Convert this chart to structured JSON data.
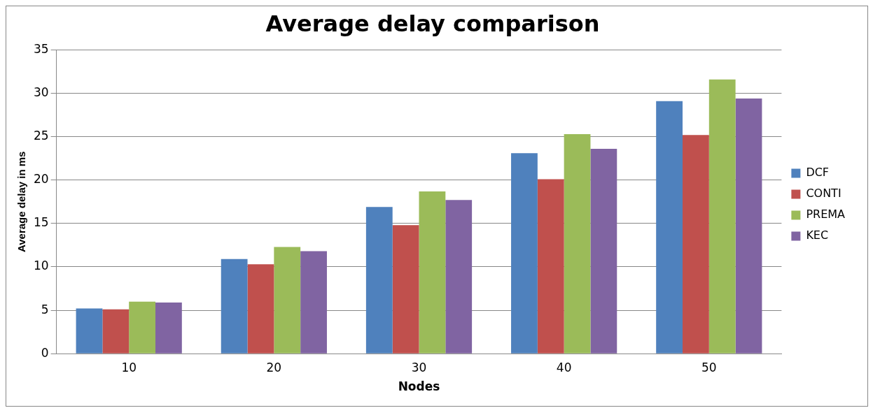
{
  "chart_data": {
    "type": "bar",
    "title": "Average delay comparison",
    "xlabel": "Nodes",
    "ylabel": "Average delay in ms",
    "categories": [
      "10",
      "20",
      "30",
      "40",
      "50"
    ],
    "series": [
      {
        "name": "DCF",
        "color": "#4f81bd",
        "values": [
          5.2,
          10.9,
          16.9,
          23.1,
          29.1
        ]
      },
      {
        "name": "CONTI",
        "color": "#c0504d",
        "values": [
          5.1,
          10.3,
          14.8,
          20.1,
          25.2
        ]
      },
      {
        "name": "PREMA",
        "color": "#9bbb59",
        "values": [
          6.0,
          12.3,
          18.7,
          25.3,
          31.6
        ]
      },
      {
        "name": "KEC",
        "color": "#8064a2",
        "values": [
          5.9,
          11.8,
          17.7,
          23.6,
          29.4
        ]
      }
    ],
    "ylim": [
      0,
      35
    ],
    "yticks": [
      0,
      5,
      10,
      15,
      20,
      25,
      30,
      35
    ],
    "grid": "y",
    "legend": "right"
  }
}
